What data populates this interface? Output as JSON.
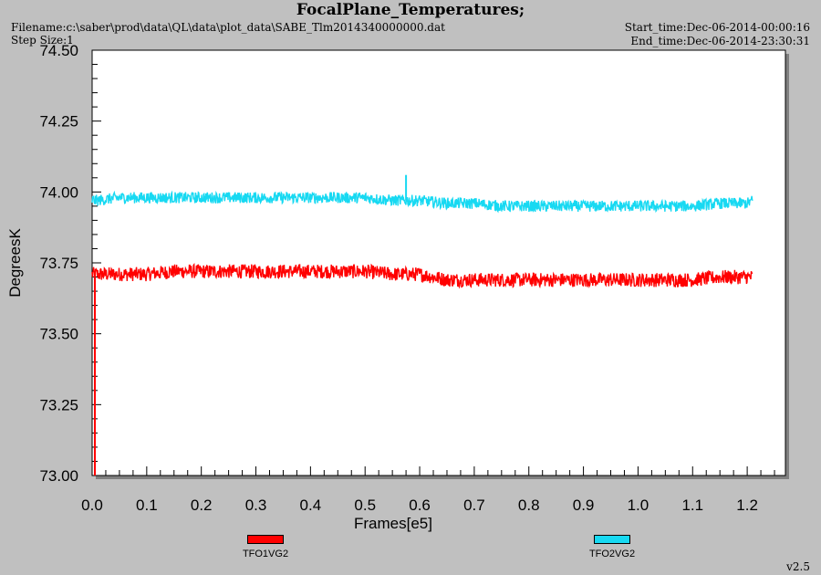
{
  "header": {
    "title": "FocalPlane_Temperatures;",
    "filename": "Filename:c:\\saber\\prod\\data\\QL\\data\\plot_data\\SABE_Tlm2014340000000.dat",
    "step_size": "Step Size:1",
    "start_time": "Start_time:Dec-06-2014-00:00:16",
    "end_time": "End_time:Dec-06-2014-23:30:31"
  },
  "footer": {
    "version": "v2.5"
  },
  "colors": {
    "background": "#c0c0c0",
    "plot_bg": "#ffffff",
    "series1": "#ff0000",
    "series2": "#17d9f2"
  },
  "chart_data": {
    "type": "line",
    "xlabel": "Frames[e5]",
    "ylabel": "DegreesK",
    "xlim": [
      0.0,
      1.27
    ],
    "ylim": [
      73.0,
      74.5
    ],
    "x_ticks": [
      "0.0",
      "0.1",
      "0.2",
      "0.3",
      "0.4",
      "0.5",
      "0.6",
      "0.7",
      "0.8",
      "0.9",
      "1.0",
      "1.1",
      "1.2"
    ],
    "y_ticks": [
      "74.50",
      "74.25",
      "74.00",
      "73.75",
      "73.50",
      "73.25",
      "73.00"
    ],
    "legend": {
      "placement": "bottom"
    },
    "series": [
      {
        "name": "TFO1VG2",
        "color": "#ff0000",
        "x": [
          0.0,
          0.01,
          0.05,
          0.1,
          0.15,
          0.2,
          0.25,
          0.3,
          0.35,
          0.4,
          0.45,
          0.5,
          0.55,
          0.6,
          0.65,
          0.7,
          0.75,
          0.8,
          0.85,
          0.9,
          0.95,
          1.0,
          1.05,
          1.1,
          1.15,
          1.2,
          1.21
        ],
        "y": [
          73.71,
          73.71,
          73.71,
          73.71,
          73.72,
          73.72,
          73.72,
          73.72,
          73.72,
          73.72,
          73.72,
          73.72,
          73.71,
          73.71,
          73.69,
          73.69,
          73.69,
          73.69,
          73.69,
          73.69,
          73.69,
          73.69,
          73.69,
          73.69,
          73.7,
          73.7,
          73.7
        ],
        "noise": 0.025,
        "min_spike": {
          "x": 0.005,
          "y": 73.0
        }
      },
      {
        "name": "TFO2VG2",
        "color": "#17d9f2",
        "x": [
          0.0,
          0.01,
          0.05,
          0.1,
          0.15,
          0.2,
          0.25,
          0.3,
          0.35,
          0.4,
          0.45,
          0.5,
          0.55,
          0.6,
          0.65,
          0.7,
          0.75,
          0.8,
          0.85,
          0.9,
          0.95,
          1.0,
          1.05,
          1.1,
          1.15,
          1.2,
          1.21
        ],
        "y": [
          73.97,
          73.97,
          73.98,
          73.98,
          73.98,
          73.98,
          73.98,
          73.98,
          73.98,
          73.98,
          73.98,
          73.98,
          73.97,
          73.97,
          73.96,
          73.96,
          73.95,
          73.95,
          73.95,
          73.95,
          73.95,
          73.95,
          73.95,
          73.95,
          73.96,
          73.96,
          73.97
        ],
        "noise": 0.02,
        "max_spike": {
          "x": 0.575,
          "y": 74.06
        }
      }
    ]
  }
}
